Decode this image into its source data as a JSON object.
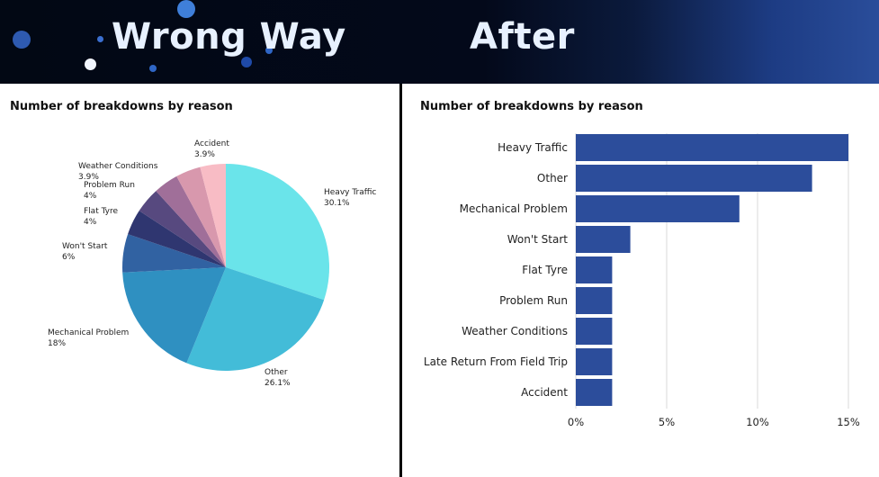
{
  "header": {
    "title_left": "Wrong Way",
    "title_right": "After"
  },
  "colors": {
    "pie_slices": [
      "#6ae4ea",
      "#43bcd8",
      "#2f90c1",
      "#3162a2",
      "#2f3670",
      "#57497f",
      "#a06f99",
      "#d898ad",
      "#f8bcc5"
    ],
    "bar_fill": "#2c4d9b",
    "grid": "#d9d9d9"
  },
  "chart_data": [
    {
      "type": "pie",
      "title": "Number of breakdowns by reason",
      "categories": [
        "Heavy Traffic",
        "Other",
        "Mechanical Problem",
        "Won't Start",
        "Flat Tyre",
        "Problem Run",
        "Weather Conditions",
        "Accident",
        "Late Return From Field Trip"
      ],
      "value_labels": [
        "30.1%",
        "26.1%",
        "18%",
        "6%",
        "4%",
        "4%",
        "3.9%",
        "3.9%",
        ""
      ],
      "values": [
        30.1,
        26.1,
        18,
        6,
        4,
        4,
        3.9,
        3.9,
        4
      ]
    },
    {
      "type": "bar",
      "orientation": "horizontal",
      "title": "Number of breakdowns by reason",
      "categories": [
        "Heavy Traffic",
        "Other",
        "Mechanical Problem",
        "Won't Start",
        "Flat Tyre",
        "Problem Run",
        "Weather Conditions",
        "Late Return From Field Trip",
        "Accident"
      ],
      "values": [
        15,
        13,
        9,
        3,
        2,
        2,
        2,
        2,
        2
      ],
      "xlim": [
        0,
        15
      ],
      "xticks": [
        0,
        5,
        10,
        15
      ],
      "xtick_labels": [
        "0%",
        "5%",
        "10%",
        "15%"
      ],
      "grid": true
    }
  ]
}
